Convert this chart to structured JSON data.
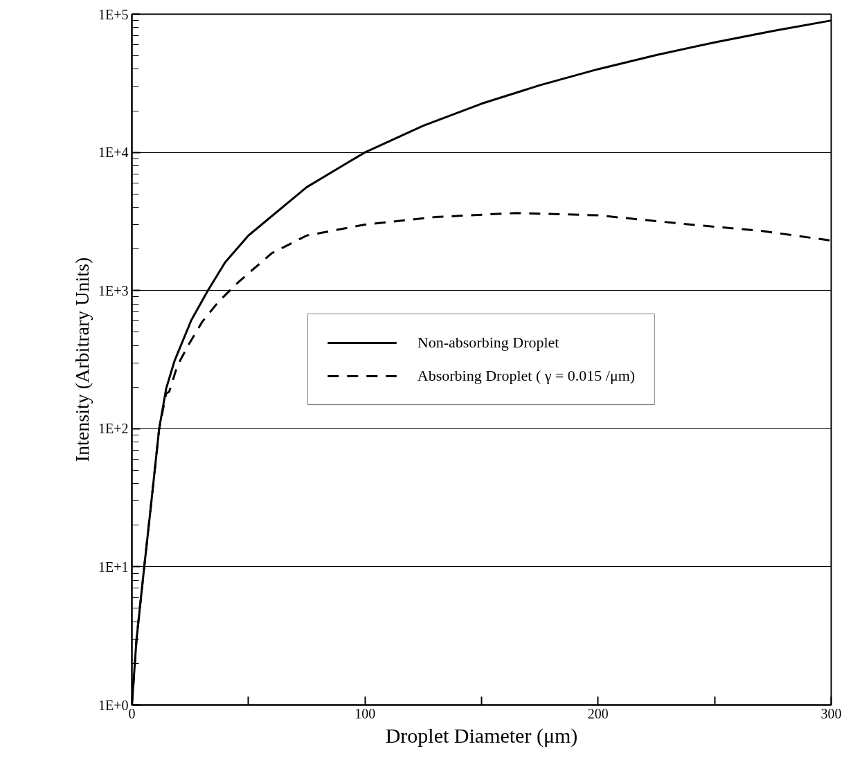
{
  "chart_data": {
    "type": "line",
    "xlabel": "Droplet Diameter (μm)",
    "ylabel": "Intensity (Arbitrary Units)",
    "log": "y",
    "grid": "y",
    "legend": "center",
    "marker": "none",
    "xlim": [
      0,
      300
    ],
    "ylim": [
      1,
      100000
    ],
    "xticks": [
      0,
      {
        "value": 50,
        "label": null
      },
      100,
      {
        "value": 150,
        "label": null
      },
      200,
      {
        "value": 250,
        "label": null
      },
      300
    ],
    "yticks": [
      {
        "value": 1,
        "label": "1E+0"
      },
      {
        "value": 10,
        "label": "1E+1"
      },
      {
        "value": 100,
        "label": "1E+2"
      },
      {
        "value": 1000,
        "label": "1E+3"
      },
      {
        "value": 10000,
        "label": "1E+4"
      },
      {
        "value": 100000,
        "label": "1E+5"
      }
    ],
    "series": [
      {
        "name": "Non-absorbing Droplet",
        "color": "#000000",
        "line_style": "solid",
        "x": [
          0,
          2,
          5.3,
          8.3,
          11.7,
          14.7,
          18.3,
          25.5,
          32.6,
          40,
          50,
          75,
          100,
          125,
          150,
          175,
          200,
          225,
          250,
          275,
          300
        ],
        "values": [
          1,
          3,
          10,
          29,
          100,
          195,
          310,
          610,
          1000,
          1600,
          2500,
          5600,
          10000,
          15600,
          22500,
          30600,
          40000,
          50600,
          62500,
          75600,
          90000
        ]
      },
      {
        "name": "Absorbing Droplet ( γ = 0.015 /μm)",
        "color": "#000000",
        "line_style": "dashed",
        "x": [
          0,
          2,
          5.3,
          8.3,
          11.7,
          14.7,
          16,
          19.5,
          24.3,
          30.2,
          37.2,
          45.7,
          60,
          75,
          100,
          130,
          165,
          200,
          240,
          270,
          300
        ],
        "values": [
          1,
          3,
          10,
          29,
          100,
          180,
          185,
          285,
          405,
          595,
          830,
          1150,
          1860,
          2500,
          3000,
          3400,
          3640,
          3500,
          3000,
          2700,
          2300
        ]
      }
    ]
  }
}
